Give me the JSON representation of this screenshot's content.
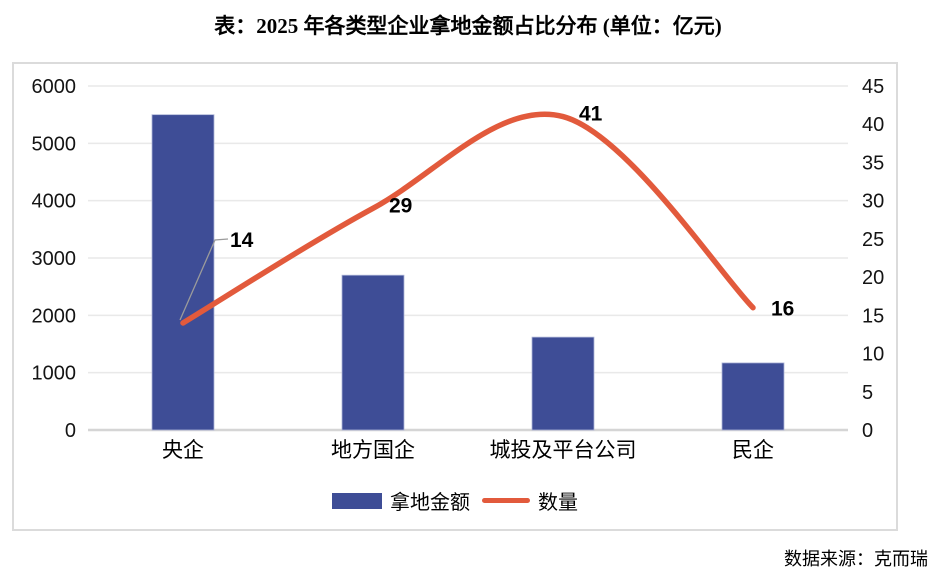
{
  "title": "表：2025 年各类型企业拿地金额占比分布 (单位：亿元)",
  "source": "数据来源：克而瑞",
  "colors": {
    "bar": "#3E4D96",
    "bar_edge": "#AEB6D8",
    "line": "#E25A3C",
    "grid": "#E9E9E9",
    "axis_line": "#D5D5D5",
    "border": "#DBDBDB",
    "text": "#141414",
    "leader": "#9B9B9B"
  },
  "legend": [
    {
      "label": "拿地金额",
      "type": "bar"
    },
    {
      "label": "数量",
      "type": "line"
    }
  ],
  "chart_data": {
    "type": "bar",
    "subtype": "bar+line combo, dual axis",
    "title": "表：2025 年各类型企业拿地金额占比分布 (单位：亿元)",
    "categories": [
      "央企",
      "地方国企",
      "城投及平台公司",
      "民企"
    ],
    "series": [
      {
        "name": "拿地金额",
        "type": "bar",
        "axis": "left",
        "values": [
          5500,
          2700,
          1620,
          1170
        ]
      },
      {
        "name": "数量",
        "type": "line",
        "axis": "right",
        "values": [
          14,
          29,
          41,
          16
        ],
        "data_labels": [
          "14",
          "29",
          "41",
          "16"
        ]
      }
    ],
    "left_axis": {
      "min": 0,
      "max": 6000,
      "ticks": [
        0,
        1000,
        2000,
        3000,
        4000,
        5000,
        6000
      ]
    },
    "right_axis": {
      "min": 0,
      "max": 45,
      "ticks": [
        0,
        5,
        10,
        15,
        20,
        25,
        30,
        35,
        40,
        45
      ]
    },
    "grid": "horizontal",
    "legend_position": "bottom",
    "xlabel": "",
    "ylabel": ""
  }
}
